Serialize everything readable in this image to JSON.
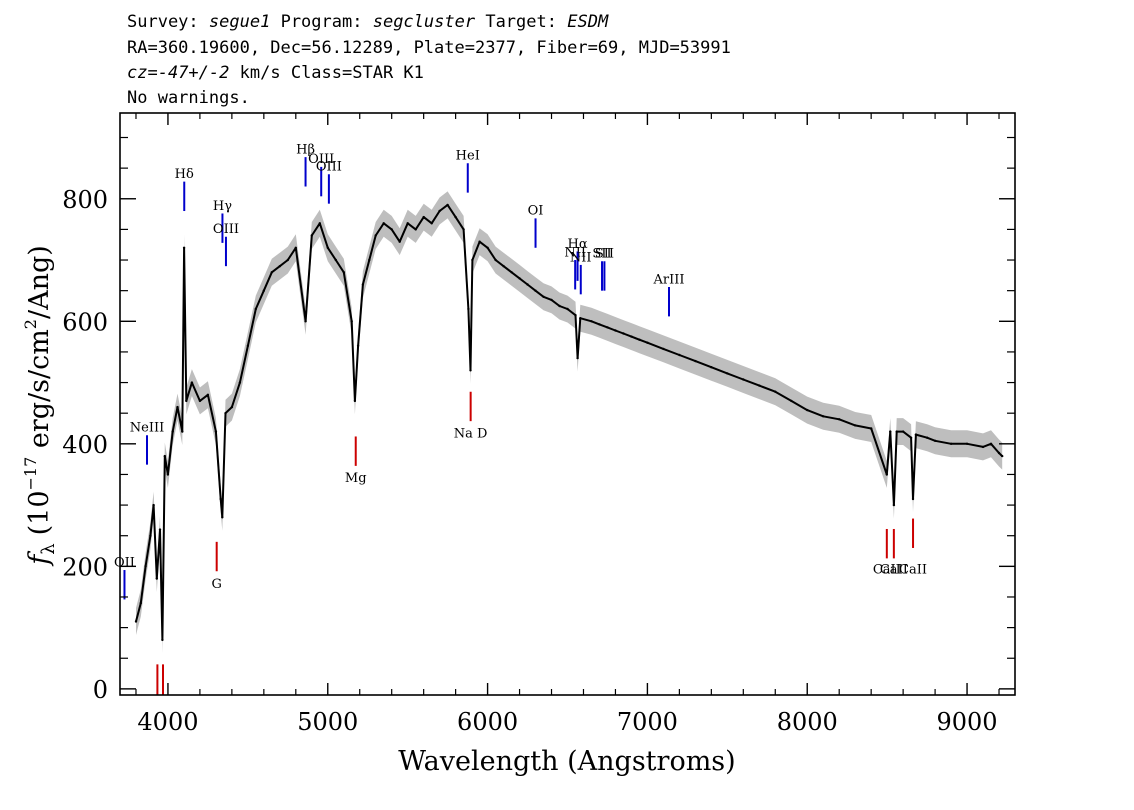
{
  "header": {
    "survey_label": "Survey:",
    "survey": "segue1",
    "program_label": "Program:",
    "program": "segcluster",
    "target_label": "Target:",
    "target": "ESDM",
    "line2": "RA=360.19600, Dec=56.12289, Plate=2377, Fiber=69, MJD=53991",
    "cz_label": "cz=",
    "cz_value": "-47+/-2",
    "cz_units": "km/s",
    "class_text": "Class=STAR K1",
    "line4": "No warnings."
  },
  "chart_data": {
    "type": "line",
    "title": "",
    "xlabel": "Wavelength (Angstroms)",
    "ylabel": "f_λ (10^-17 erg/s/cm^2/Ang)",
    "ylabel_parts": {
      "f": "f",
      "lambda": "λ",
      "pre": "(10",
      "exp1": "−17",
      "mid": " erg/s/cm",
      "exp2": "2",
      "post": "/Ang)"
    },
    "xlim": [
      3700,
      9300
    ],
    "ylim": [
      -10,
      940
    ],
    "x_ticks": [
      4000,
      5000,
      6000,
      7000,
      8000,
      9000
    ],
    "x_tick_labels": [
      "4000",
      "5000",
      "6000",
      "7000",
      "8000",
      "9000"
    ],
    "y_ticks": [
      0,
      200,
      400,
      600,
      800
    ],
    "y_tick_labels": [
      "0",
      "200",
      "400",
      "600",
      "800"
    ],
    "grid": false,
    "series": [
      {
        "name": "flux",
        "color": "#000000",
        "points": [
          [
            3800,
            110
          ],
          [
            3830,
            140
          ],
          [
            3860,
            200
          ],
          [
            3890,
            250
          ],
          [
            3910,
            300
          ],
          [
            3930,
            180
          ],
          [
            3950,
            260
          ],
          [
            3965,
            80
          ],
          [
            3980,
            380
          ],
          [
            4000,
            350
          ],
          [
            4030,
            420
          ],
          [
            4060,
            460
          ],
          [
            4090,
            420
          ],
          [
            4101,
            720
          ],
          [
            4115,
            470
          ],
          [
            4150,
            500
          ],
          [
            4200,
            470
          ],
          [
            4250,
            480
          ],
          [
            4300,
            420
          ],
          [
            4330,
            310
          ],
          [
            4340,
            280
          ],
          [
            4360,
            450
          ],
          [
            4400,
            460
          ],
          [
            4450,
            500
          ],
          [
            4500,
            560
          ],
          [
            4550,
            620
          ],
          [
            4600,
            650
          ],
          [
            4650,
            680
          ],
          [
            4700,
            690
          ],
          [
            4750,
            700
          ],
          [
            4800,
            720
          ],
          [
            4861,
            600
          ],
          [
            4900,
            740
          ],
          [
            4950,
            760
          ],
          [
            5000,
            720
          ],
          [
            5050,
            700
          ],
          [
            5100,
            680
          ],
          [
            5150,
            600
          ],
          [
            5170,
            470
          ],
          [
            5190,
            560
          ],
          [
            5220,
            660
          ],
          [
            5260,
            700
          ],
          [
            5300,
            740
          ],
          [
            5350,
            760
          ],
          [
            5400,
            750
          ],
          [
            5450,
            730
          ],
          [
            5500,
            760
          ],
          [
            5550,
            750
          ],
          [
            5600,
            770
          ],
          [
            5650,
            760
          ],
          [
            5700,
            780
          ],
          [
            5750,
            790
          ],
          [
            5800,
            770
          ],
          [
            5850,
            750
          ],
          [
            5880,
            620
          ],
          [
            5893,
            520
          ],
          [
            5905,
            700
          ],
          [
            5950,
            730
          ],
          [
            6000,
            720
          ],
          [
            6050,
            700
          ],
          [
            6100,
            690
          ],
          [
            6150,
            680
          ],
          [
            6200,
            670
          ],
          [
            6250,
            660
          ],
          [
            6300,
            650
          ],
          [
            6350,
            640
          ],
          [
            6400,
            635
          ],
          [
            6450,
            625
          ],
          [
            6500,
            620
          ],
          [
            6550,
            610
          ],
          [
            6563,
            540
          ],
          [
            6580,
            605
          ],
          [
            6650,
            600
          ],
          [
            6700,
            595
          ],
          [
            6750,
            590
          ],
          [
            6800,
            585
          ],
          [
            6850,
            580
          ],
          [
            6900,
            575
          ],
          [
            6950,
            570
          ],
          [
            7000,
            565
          ],
          [
            7100,
            555
          ],
          [
            7200,
            545
          ],
          [
            7300,
            535
          ],
          [
            7400,
            525
          ],
          [
            7500,
            515
          ],
          [
            7600,
            505
          ],
          [
            7700,
            495
          ],
          [
            7800,
            485
          ],
          [
            7900,
            470
          ],
          [
            8000,
            455
          ],
          [
            8100,
            445
          ],
          [
            8200,
            440
          ],
          [
            8300,
            430
          ],
          [
            8400,
            425
          ],
          [
            8498,
            350
          ],
          [
            8520,
            420
          ],
          [
            8542,
            300
          ],
          [
            8560,
            420
          ],
          [
            8600,
            420
          ],
          [
            8650,
            410
          ],
          [
            8662,
            310
          ],
          [
            8680,
            415
          ],
          [
            8750,
            410
          ],
          [
            8800,
            405
          ],
          [
            8900,
            400
          ],
          [
            9000,
            400
          ],
          [
            9100,
            395
          ],
          [
            9150,
            400
          ],
          [
            9200,
            385
          ],
          [
            9220,
            380
          ]
        ]
      }
    ],
    "annotations": {
      "emission_lines": [
        {
          "label": "OII",
          "wavelength": 3728,
          "y_mark": [
            146,
            194
          ],
          "y_text": 200
        },
        {
          "label": "NeIII",
          "wavelength": 3869,
          "y_mark": [
            366,
            414
          ],
          "y_text": 420
        },
        {
          "label": "Hδ",
          "wavelength": 4102,
          "y_mark": [
            780,
            828
          ],
          "y_text": 834
        },
        {
          "label": "Hγ",
          "wavelength": 4341,
          "y_mark": [
            728,
            776
          ],
          "y_text": 782
        },
        {
          "label": "OIII",
          "wavelength": 4363,
          "y_mark": [
            690,
            738
          ],
          "y_text": 744
        },
        {
          "label": "Hβ",
          "wavelength": 4861,
          "y_mark": [
            820,
            868
          ],
          "y_text": 874
        },
        {
          "label": "OIII",
          "wavelength": 4959,
          "y_mark": [
            804,
            852
          ],
          "y_text": 858
        },
        {
          "label": "OIII",
          "wavelength": 5007,
          "y_mark": [
            792,
            840
          ],
          "y_text": 846
        },
        {
          "label": "HeI",
          "wavelength": 5876,
          "y_mark": [
            810,
            858
          ],
          "y_text": 864
        },
        {
          "label": "OI",
          "wavelength": 6300,
          "y_mark": [
            720,
            768
          ],
          "y_text": 774
        },
        {
          "label": "NII",
          "wavelength": 6548,
          "y_mark": [
            652,
            700
          ],
          "y_text": 706
        },
        {
          "label": "Hα",
          "wavelength": 6563,
          "y_mark": [
            666,
            714
          ],
          "y_text": 720
        },
        {
          "label": "NII",
          "wavelength": 6583,
          "y_mark": [
            644,
            692
          ],
          "y_text": 698
        },
        {
          "label": "SII",
          "wavelength": 6716,
          "y_mark": [
            650,
            698
          ],
          "y_text": 704
        },
        {
          "label": "SII",
          "wavelength": 6731,
          "y_mark": [
            650,
            698
          ],
          "y_text": 704
        },
        {
          "label": "ArIII",
          "wavelength": 7135,
          "y_mark": [
            608,
            656
          ],
          "y_text": 662
        }
      ],
      "absorption_lines": [
        {
          "label": "",
          "wavelength": 3934,
          "y_mark": [
            40,
            -10
          ],
          "y_text": -30
        },
        {
          "label": "",
          "wavelength": 3969,
          "y_mark": [
            40,
            -10
          ],
          "y_text": -30
        },
        {
          "label": "G",
          "wavelength": 4305,
          "y_mark": [
            240,
            192
          ],
          "y_text": 165
        },
        {
          "label": "Mg",
          "wavelength": 5175,
          "y_mark": [
            412,
            364
          ],
          "y_text": 338
        },
        {
          "label": "Na D",
          "wavelength": 5894,
          "y_mark": [
            485,
            437
          ],
          "y_text": 410
        },
        {
          "label": "CaII",
          "wavelength": 8498,
          "y_mark": [
            261,
            213
          ],
          "y_text": 188
        },
        {
          "label": "CaII",
          "wavelength": 8542,
          "y_mark": [
            261,
            213
          ],
          "y_text": 188
        },
        {
          "label": "CaII",
          "wavelength": 8662,
          "y_mark": [
            278,
            230
          ],
          "y_text": 188
        }
      ]
    },
    "colors": {
      "flux": "#000000",
      "error_band": "#bebebe",
      "emission": "#0000cc",
      "absorption": "#cc0000",
      "axis": "#000000"
    }
  }
}
